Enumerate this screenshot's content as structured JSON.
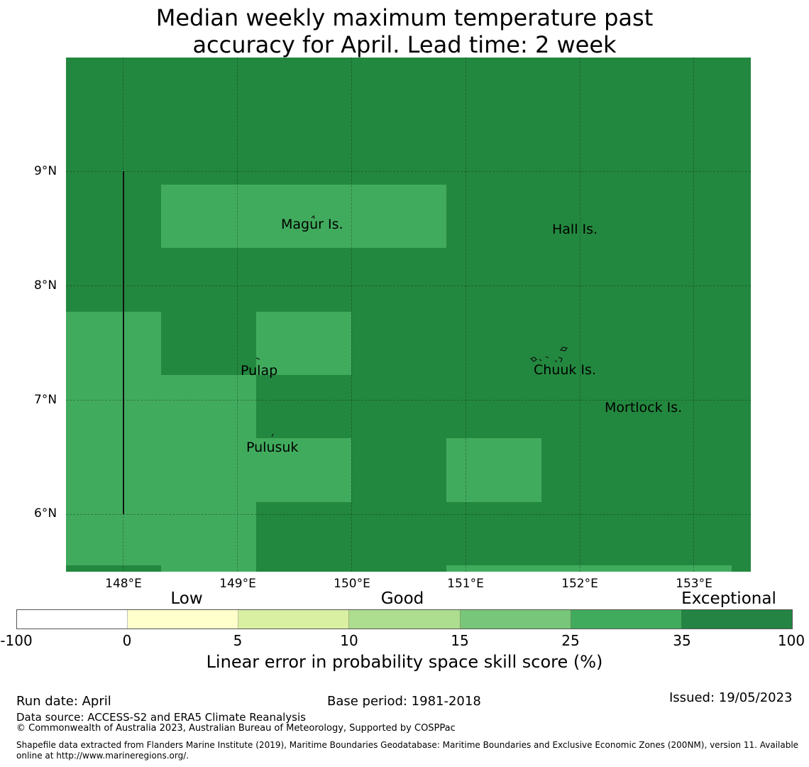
{
  "title_line1": "Median weekly maximum temperature past",
  "title_line2": "accuracy for April. Lead time: 2 week",
  "colors": {
    "exceptional": "#23883f",
    "good_high": "#41ab5d",
    "ocean_outline": "#111111"
  },
  "map": {
    "lon_range": [
      147.5,
      153.5
    ],
    "lat_range": [
      5.5,
      10.0
    ],
    "x_ticks": [
      "148°E",
      "149°E",
      "150°E",
      "151°E",
      "152°E",
      "153°E"
    ],
    "y_ticks": [
      "9°N",
      "8°N",
      "7°N",
      "6°N"
    ],
    "places": [
      {
        "name": "Magur Is."
      },
      {
        "name": "Hall Is."
      },
      {
        "name": "Pulap"
      },
      {
        "name": "Chuuk Is."
      },
      {
        "name": "Mortlock Is."
      },
      {
        "name": "Pulusuk"
      }
    ]
  },
  "legend": {
    "categories": [
      "Low",
      "Good",
      "Exceptional"
    ],
    "ticks": [
      "-100",
      "0",
      "5",
      "10",
      "15",
      "25",
      "35",
      "100"
    ],
    "segment_colors": [
      "#ffffff",
      "#ffffcc",
      "#d9f0a3",
      "#addd8e",
      "#78c679",
      "#41ab5d",
      "#238443"
    ],
    "label": "Linear error in probability space skill score (%)"
  },
  "footer": {
    "run_date": "Run date: April",
    "base_period": "Base period: 1981-2018",
    "issued": "Issued: 19/05/2023",
    "data_source": "Data source: ACCESS-S2 and ERA5 Climate Reanalysis",
    "copyright": "© Commonwealth of Australia 2023, Australian Bureau of Meteorology, Supported by COSPPac",
    "shapefile_line1": "Shapefile data extracted from Flanders Marine Institute (2019), Maritime Boundaries Geodatabase: Maritime Boundaries and Exclusive Economic Zones (200NM), version 11. Available",
    "shapefile_line2": "online at http://www.marineregions.org/."
  }
}
